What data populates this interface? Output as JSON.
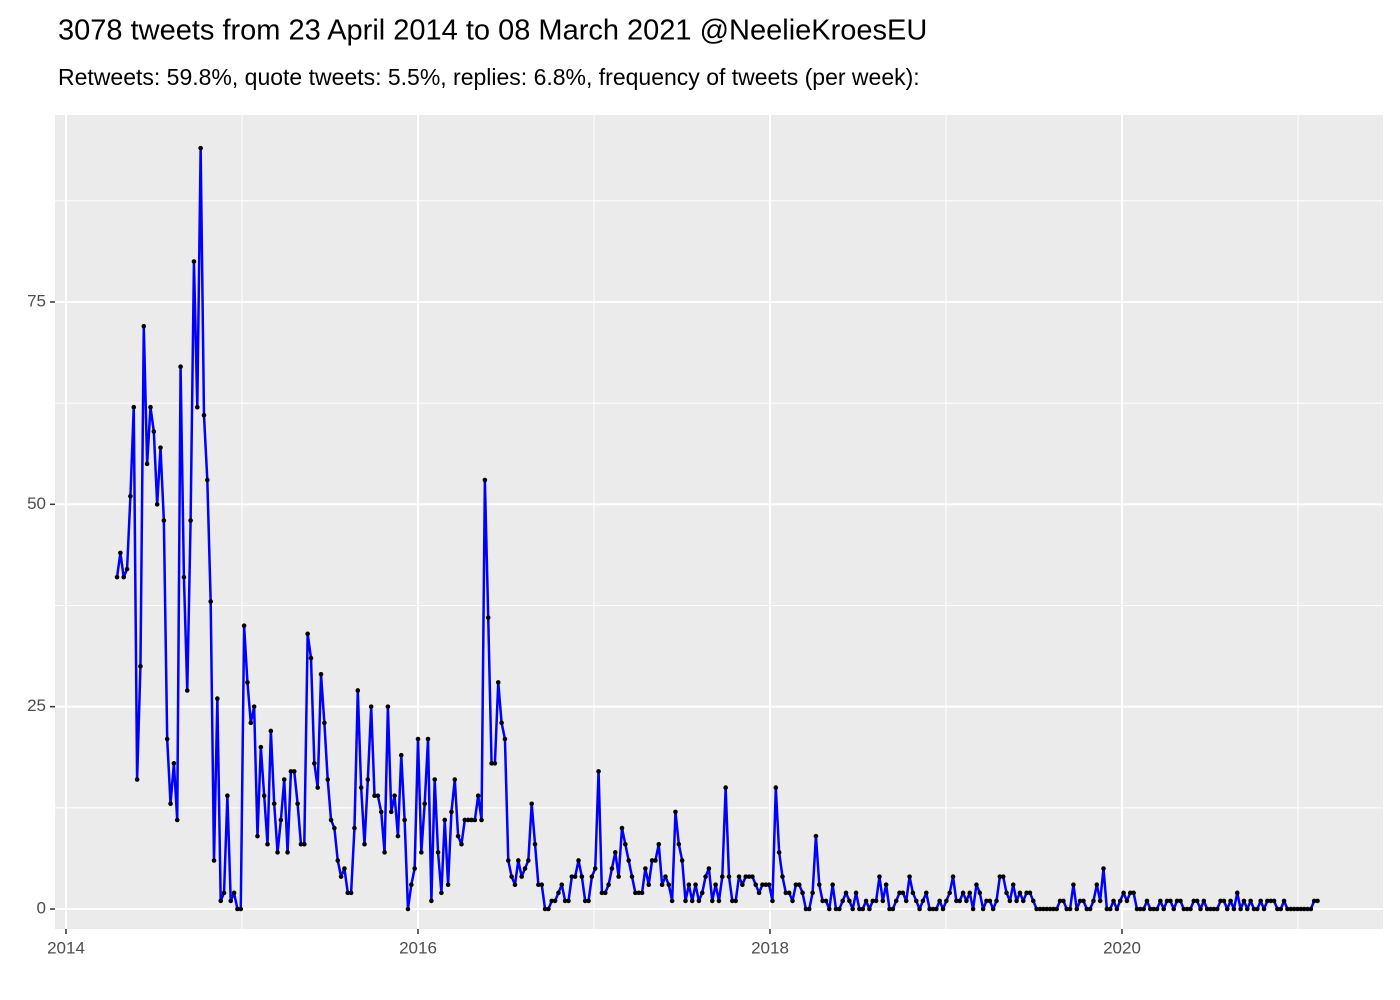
{
  "chart_data": {
    "type": "line",
    "title": "3078 tweets from 23 April 2014 to 08 March 2021 @NeelieKroesEU",
    "subtitle": "Retweets: 59.8%, quote tweets: 5.5%, replies: 6.8%, frequency of tweets (per week):",
    "x": [
      2014.29,
      2014.309,
      2014.328,
      2014.347,
      2014.366,
      2014.385,
      2014.404,
      2014.423,
      2014.442,
      2014.461,
      2014.48,
      2014.499,
      2014.518,
      2014.537,
      2014.556,
      2014.575,
      2014.594,
      2014.613,
      2014.632,
      2014.651,
      2014.67,
      2014.689,
      2014.708,
      2014.727,
      2014.746,
      2014.765,
      2014.784,
      2014.803,
      2014.822,
      2014.841,
      2014.86,
      2014.879,
      2014.898,
      2014.917,
      2014.936,
      2014.955,
      2014.974,
      2014.993,
      2015.012,
      2015.031,
      2015.05,
      2015.069,
      2015.088,
      2015.107,
      2015.126,
      2015.145,
      2015.164,
      2015.183,
      2015.202,
      2015.221,
      2015.24,
      2015.259,
      2015.278,
      2015.297,
      2015.316,
      2015.335,
      2015.354,
      2015.373,
      2015.392,
      2015.411,
      2015.43,
      2015.449,
      2015.468,
      2015.487,
      2015.506,
      2015.525,
      2015.544,
      2015.563,
      2015.582,
      2015.601,
      2015.62,
      2015.639,
      2015.658,
      2015.677,
      2015.696,
      2015.715,
      2015.734,
      2015.753,
      2015.772,
      2015.791,
      2015.81,
      2015.829,
      2015.848,
      2015.867,
      2015.886,
      2015.905,
      2015.924,
      2015.943,
      2015.962,
      2015.981,
      2016,
      2016.019,
      2016.038,
      2016.057,
      2016.076,
      2016.095,
      2016.114,
      2016.133,
      2016.152,
      2016.171,
      2016.19,
      2016.209,
      2016.228,
      2016.247,
      2016.266,
      2016.285,
      2016.304,
      2016.323,
      2016.342,
      2016.361,
      2016.38,
      2016.399,
      2016.418,
      2016.437,
      2016.456,
      2016.475,
      2016.494,
      2016.513,
      2016.532,
      2016.551,
      2016.57,
      2016.589,
      2016.608,
      2016.627,
      2016.646,
      2016.665,
      2016.684,
      2016.703,
      2016.722,
      2016.741,
      2016.76,
      2016.779,
      2016.798,
      2016.817,
      2016.836,
      2016.855,
      2016.874,
      2016.893,
      2016.912,
      2016.931,
      2016.95,
      2016.969,
      2016.988,
      2017.007,
      2017.026,
      2017.045,
      2017.064,
      2017.083,
      2017.102,
      2017.121,
      2017.14,
      2017.159,
      2017.178,
      2017.197,
      2017.216,
      2017.235,
      2017.254,
      2017.273,
      2017.292,
      2017.311,
      2017.33,
      2017.349,
      2017.368,
      2017.387,
      2017.406,
      2017.425,
      2017.444,
      2017.463,
      2017.482,
      2017.501,
      2017.52,
      2017.539,
      2017.558,
      2017.577,
      2017.596,
      2017.615,
      2017.634,
      2017.653,
      2017.672,
      2017.691,
      2017.71,
      2017.729,
      2017.748,
      2017.767,
      2017.786,
      2017.805,
      2017.824,
      2017.843,
      2017.862,
      2017.881,
      2017.9,
      2017.919,
      2017.938,
      2017.957,
      2017.976,
      2017.995,
      2018.014,
      2018.033,
      2018.052,
      2018.071,
      2018.09,
      2018.109,
      2018.128,
      2018.147,
      2018.166,
      2018.185,
      2018.204,
      2018.223,
      2018.242,
      2018.261,
      2018.28,
      2018.299,
      2018.318,
      2018.337,
      2018.356,
      2018.375,
      2018.394,
      2018.413,
      2018.432,
      2018.451,
      2018.47,
      2018.489,
      2018.508,
      2018.527,
      2018.546,
      2018.565,
      2018.584,
      2018.603,
      2018.622,
      2018.641,
      2018.66,
      2018.679,
      2018.698,
      2018.717,
      2018.736,
      2018.755,
      2018.774,
      2018.793,
      2018.812,
      2018.831,
      2018.85,
      2018.869,
      2018.888,
      2018.907,
      2018.926,
      2018.945,
      2018.964,
      2018.983,
      2019.002,
      2019.021,
      2019.04,
      2019.059,
      2019.078,
      2019.097,
      2019.116,
      2019.135,
      2019.154,
      2019.173,
      2019.192,
      2019.211,
      2019.23,
      2019.249,
      2019.268,
      2019.287,
      2019.306,
      2019.325,
      2019.344,
      2019.363,
      2019.382,
      2019.401,
      2019.42,
      2019.439,
      2019.458,
      2019.477,
      2019.496,
      2019.515,
      2019.534,
      2019.553,
      2019.572,
      2019.591,
      2019.61,
      2019.629,
      2019.648,
      2019.667,
      2019.686,
      2019.705,
      2019.724,
      2019.743,
      2019.762,
      2019.781,
      2019.8,
      2019.819,
      2019.838,
      2019.857,
      2019.876,
      2019.895,
      2019.914,
      2019.933,
      2019.952,
      2019.971,
      2019.99,
      2020.009,
      2020.028,
      2020.047,
      2020.066,
      2020.085,
      2020.104,
      2020.123,
      2020.142,
      2020.161,
      2020.18,
      2020.199,
      2020.218,
      2020.237,
      2020.256,
      2020.275,
      2020.294,
      2020.313,
      2020.332,
      2020.351,
      2020.37,
      2020.389,
      2020.408,
      2020.427,
      2020.446,
      2020.465,
      2020.484,
      2020.503,
      2020.522,
      2020.541,
      2020.56,
      2020.579,
      2020.598,
      2020.617,
      2020.636,
      2020.655,
      2020.674,
      2020.693,
      2020.712,
      2020.731,
      2020.75,
      2020.769,
      2020.788,
      2020.807,
      2020.826,
      2020.845,
      2020.864,
      2020.883,
      2020.902,
      2020.921,
      2020.94,
      2020.959,
      2020.978,
      2020.997,
      2021.016,
      2021.035,
      2021.054,
      2021.073,
      2021.092,
      2021.111
    ],
    "series": [
      {
        "color": "#0000ff",
        "point_color": "#000000",
        "values": [
          41,
          44,
          41,
          42,
          51,
          62,
          16,
          30,
          72,
          55,
          62,
          59,
          50,
          57,
          48,
          21,
          13,
          18,
          11,
          67,
          41,
          27,
          48,
          80,
          62,
          94,
          61,
          53,
          38,
          6,
          26,
          1,
          2,
          14,
          1,
          2,
          0,
          0,
          35,
          28,
          23,
          25,
          9,
          20,
          14,
          8,
          22,
          13,
          7,
          11,
          16,
          7,
          17,
          17,
          13,
          8,
          8,
          34,
          31,
          18,
          15,
          29,
          23,
          16,
          11,
          10,
          6,
          4,
          5,
          2,
          2,
          10,
          27,
          15,
          8,
          16,
          25,
          14,
          14,
          12,
          7,
          25,
          12,
          14,
          9,
          19,
          11,
          0,
          3,
          5,
          21,
          7,
          13,
          21,
          1,
          16,
          7,
          2,
          11,
          3,
          12,
          16,
          9,
          8,
          11,
          11,
          11,
          11,
          14,
          11,
          53,
          36,
          18,
          18,
          28,
          23,
          21,
          6,
          4,
          3,
          6,
          4,
          5,
          6,
          13,
          8,
          3,
          3,
          0,
          0,
          1,
          1,
          2,
          3,
          1,
          1,
          4,
          4,
          6,
          4,
          1,
          1,
          4,
          5,
          17,
          2,
          2,
          3,
          5,
          7,
          4,
          10,
          8,
          6,
          4,
          2,
          2,
          2,
          5,
          3,
          6,
          6,
          8,
          3,
          4,
          3,
          1,
          12,
          8,
          6,
          1,
          3,
          1,
          3,
          1,
          2,
          4,
          5,
          1,
          3,
          1,
          4,
          15,
          4,
          1,
          1,
          4,
          3,
          4,
          4,
          4,
          3,
          2,
          3,
          3,
          3,
          1,
          15,
          7,
          4,
          2,
          2,
          1,
          3,
          3,
          2,
          0,
          0,
          2,
          9,
          3,
          1,
          1,
          0,
          3,
          0,
          0,
          1,
          2,
          1,
          0,
          2,
          0,
          0,
          1,
          0,
          1,
          1,
          4,
          1,
          3,
          0,
          0,
          1,
          2,
          2,
          1,
          4,
          2,
          1,
          0,
          1,
          2,
          0,
          0,
          0,
          1,
          0,
          1,
          2,
          4,
          1,
          1,
          2,
          1,
          2,
          0,
          3,
          2,
          0,
          1,
          1,
          0,
          1,
          4,
          4,
          2,
          1,
          3,
          1,
          2,
          1,
          2,
          2,
          1,
          0,
          0,
          0,
          0,
          0,
          0,
          0,
          1,
          1,
          0,
          0,
          3,
          0,
          1,
          1,
          0,
          0,
          1,
          3,
          1,
          5,
          0,
          0,
          1,
          0,
          1,
          2,
          1,
          2,
          2,
          0,
          0,
          0,
          1,
          0,
          0,
          0,
          1,
          0,
          1,
          1,
          0,
          1,
          1,
          0,
          0,
          0,
          1,
          1,
          0,
          1,
          0,
          0,
          0,
          0,
          1,
          1,
          0,
          1,
          0,
          2,
          0,
          1,
          0,
          1,
          0,
          0,
          1,
          0,
          1,
          1,
          1,
          0,
          0,
          1,
          0,
          0,
          0,
          0,
          0,
          0,
          0,
          0,
          1,
          1
        ]
      }
    ],
    "xlim": [
      2013.9375,
      2021.483
    ],
    "ylim": [
      -2.47,
      98.1
    ],
    "xticks": [
      2014,
      2016,
      2018,
      2020
    ],
    "yticks": [
      0,
      25,
      50,
      75
    ],
    "grid": true,
    "panel_color": "#ebebeb"
  }
}
